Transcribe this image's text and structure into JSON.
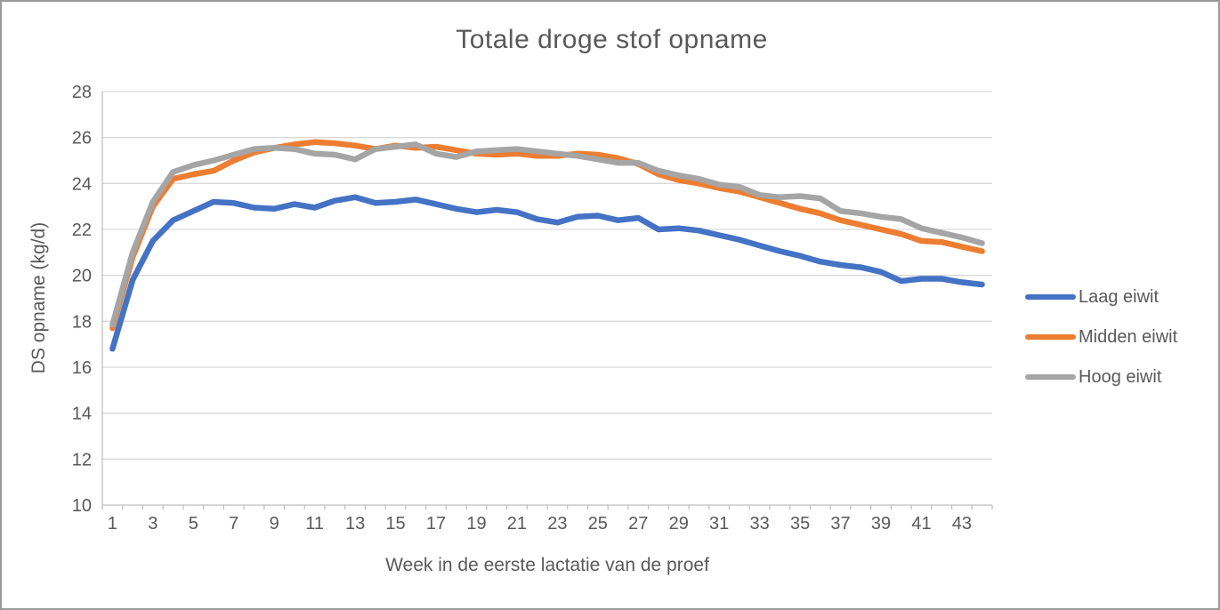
{
  "title": "Totale droge stof opname",
  "colors": {
    "axis_line": "#BFBFBF",
    "gridline": "#D9D9D9",
    "text": "#595959",
    "series_blue": "#4472C4",
    "series_orange": "#ED7D31",
    "series_gray": "#A5A5A5"
  },
  "legend": {
    "position": "right",
    "items": [
      {
        "label": "Laag eiwit",
        "color": "#4472C4"
      },
      {
        "label": "Midden eiwit",
        "color": "#ED7D31"
      },
      {
        "label": "Hoog eiwit",
        "color": "#A5A5A5"
      }
    ]
  },
  "chart_data": {
    "type": "line",
    "title": "Totale droge stof opname",
    "xlabel": "Week in de eerste lactatie van de proef",
    "ylabel": "DS opname (kg/d)",
    "x": [
      1,
      2,
      3,
      4,
      5,
      6,
      7,
      8,
      9,
      10,
      11,
      12,
      13,
      14,
      15,
      16,
      17,
      18,
      19,
      20,
      21,
      22,
      23,
      24,
      25,
      26,
      27,
      28,
      29,
      30,
      31,
      32,
      33,
      34,
      35,
      36,
      37,
      38,
      39,
      40,
      41,
      42,
      43,
      44
    ],
    "x_tick_labels": [
      "1",
      "3",
      "5",
      "7",
      "9",
      "11",
      "13",
      "15",
      "17",
      "19",
      "21",
      "23",
      "25",
      "27",
      "29",
      "31",
      "33",
      "35",
      "37",
      "39",
      "41",
      "43"
    ],
    "x_tick_values": [
      1,
      3,
      5,
      7,
      9,
      11,
      13,
      15,
      17,
      19,
      21,
      23,
      25,
      27,
      29,
      31,
      33,
      35,
      37,
      39,
      41,
      43
    ],
    "ylim": [
      10,
      28
    ],
    "y_ticks": [
      10,
      12,
      14,
      16,
      18,
      20,
      22,
      24,
      26,
      28
    ],
    "grid": true,
    "legend_position": "right",
    "series": [
      {
        "name": "Laag eiwit",
        "color": "#4472C4",
        "values": [
          16.8,
          19.8,
          21.5,
          22.4,
          22.8,
          23.2,
          23.15,
          22.95,
          22.9,
          23.1,
          22.95,
          23.25,
          23.4,
          23.15,
          23.2,
          23.3,
          23.1,
          22.9,
          22.75,
          22.85,
          22.75,
          22.45,
          22.3,
          22.55,
          22.6,
          22.4,
          22.5,
          22.0,
          22.05,
          21.95,
          21.75,
          21.55,
          21.3,
          21.05,
          20.85,
          20.6,
          20.45,
          20.35,
          20.15,
          19.75,
          19.85,
          19.85,
          19.7,
          19.6
        ]
      },
      {
        "name": "Midden eiwit",
        "color": "#ED7D31",
        "values": [
          17.7,
          20.8,
          23.0,
          24.2,
          24.4,
          24.55,
          25.0,
          25.35,
          25.55,
          25.7,
          25.8,
          25.75,
          25.65,
          25.5,
          25.65,
          25.55,
          25.6,
          25.45,
          25.3,
          25.25,
          25.3,
          25.2,
          25.2,
          25.3,
          25.25,
          25.1,
          24.85,
          24.4,
          24.15,
          24.0,
          23.8,
          23.65,
          23.4,
          23.15,
          22.9,
          22.7,
          22.4,
          22.2,
          22.0,
          21.8,
          21.5,
          21.45,
          21.25,
          21.05
        ]
      },
      {
        "name": "Hoog eiwit",
        "color": "#A5A5A5",
        "values": [
          17.85,
          21.0,
          23.2,
          24.5,
          24.8,
          25.0,
          25.25,
          25.5,
          25.55,
          25.5,
          25.3,
          25.25,
          25.05,
          25.5,
          25.6,
          25.7,
          25.3,
          25.15,
          25.4,
          25.45,
          25.5,
          25.4,
          25.3,
          25.2,
          25.05,
          24.9,
          24.9,
          24.55,
          24.35,
          24.2,
          23.95,
          23.85,
          23.5,
          23.4,
          23.45,
          23.35,
          22.8,
          22.7,
          22.55,
          22.45,
          22.05,
          21.85,
          21.65,
          21.4
        ]
      }
    ]
  }
}
